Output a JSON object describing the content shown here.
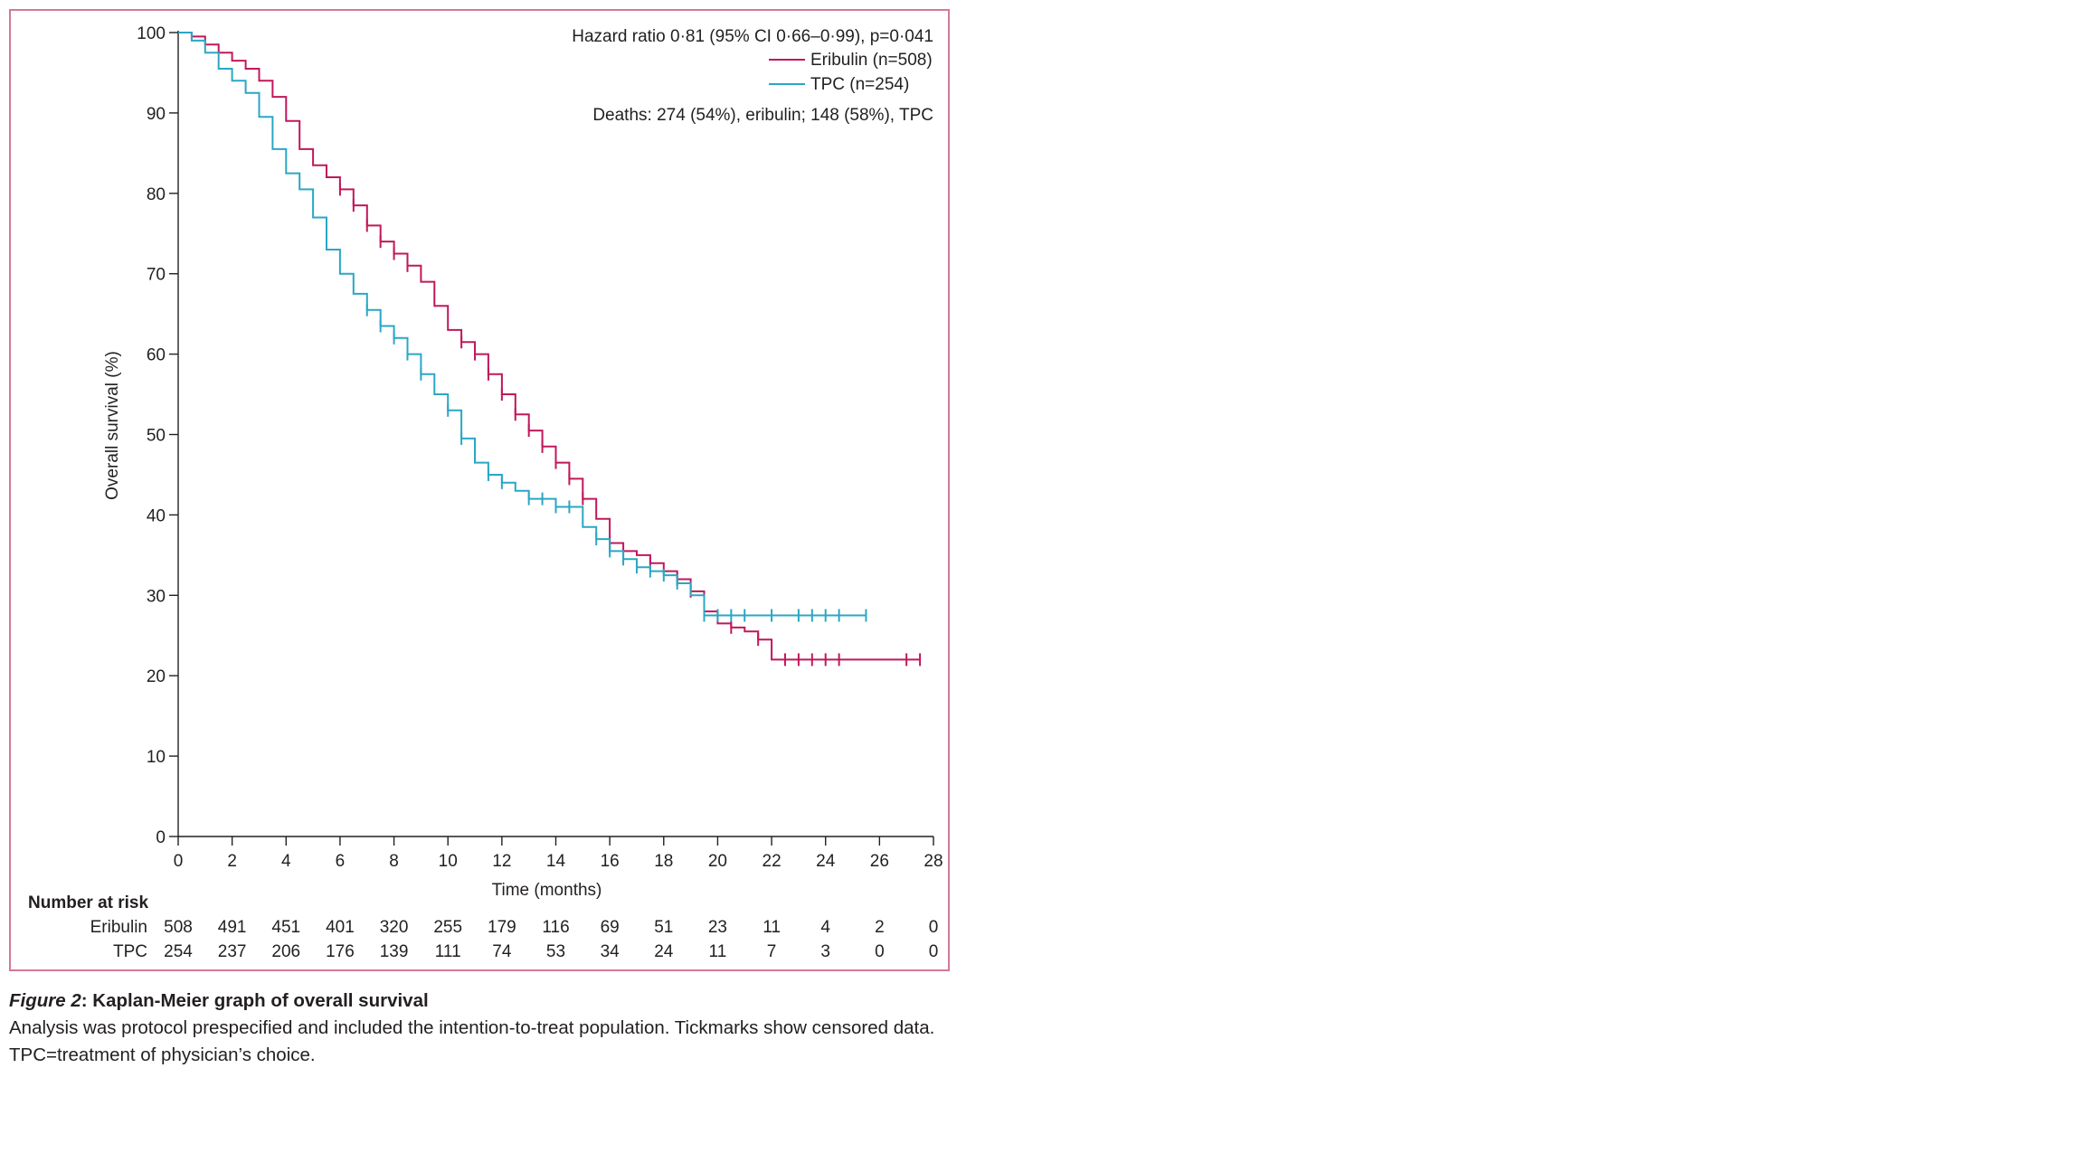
{
  "chart_data": {
    "type": "line",
    "subtype": "kaplan-meier step curve",
    "title": "",
    "xlabel": "Time (months)",
    "ylabel": "Overall survival (%)",
    "xlim": [
      0,
      28
    ],
    "ylim": [
      0,
      100
    ],
    "xticks": [
      0,
      2,
      4,
      6,
      8,
      10,
      12,
      14,
      16,
      18,
      20,
      22,
      24,
      26,
      28
    ],
    "yticks": [
      0,
      10,
      20,
      30,
      40,
      50,
      60,
      70,
      80,
      90,
      100
    ],
    "grid": false,
    "legend_position": "top-right",
    "annotations": {
      "hazard_ratio": "Hazard ratio 0·81 (95% CI 0·66–0·99), p=0·041",
      "deaths": "Deaths: 274 (54%), eribulin; 148 (58%), TPC"
    },
    "series": [
      {
        "name": "Eribulin (n=508)",
        "color": "#c0185a",
        "x": [
          0,
          0.5,
          1.0,
          1.5,
          2.0,
          2.5,
          3.0,
          3.5,
          4.0,
          4.5,
          5.0,
          5.5,
          6.0,
          6.5,
          7.0,
          7.5,
          8.0,
          8.5,
          9.0,
          9.5,
          10.0,
          10.5,
          11.0,
          11.5,
          12.0,
          12.5,
          13.0,
          13.5,
          14.0,
          14.5,
          15.0,
          15.5,
          16.0,
          16.5,
          17.0,
          17.5,
          18.0,
          18.5,
          19.0,
          19.5,
          20.0,
          20.5,
          21.0,
          21.5,
          22.0,
          23.0,
          24.0,
          25.0,
          26.0,
          27.5
        ],
        "y": [
          100,
          99.5,
          98.5,
          97.5,
          96.5,
          95.5,
          94.0,
          92.0,
          89.0,
          85.5,
          83.5,
          82.0,
          80.5,
          78.5,
          76.0,
          74.0,
          72.5,
          71.0,
          69.0,
          66.0,
          63.0,
          61.5,
          60.0,
          57.5,
          55.0,
          52.5,
          50.5,
          48.5,
          46.5,
          44.5,
          42.0,
          39.5,
          36.5,
          35.5,
          35.0,
          34.0,
          33.0,
          32.0,
          30.5,
          28.0,
          26.5,
          26.0,
          25.5,
          24.5,
          22.0,
          22.0,
          22.0,
          22.0,
          22.0,
          22.0
        ],
        "censored_x": [
          6.0,
          6.5,
          7.0,
          7.5,
          8.0,
          8.5,
          10.5,
          11.0,
          11.5,
          12.0,
          12.5,
          13.0,
          13.5,
          14.0,
          14.5,
          15.0,
          16.0,
          17.5,
          18.5,
          19.0,
          20.5,
          21.5,
          22.5,
          23.0,
          23.5,
          24.0,
          24.5,
          27.0,
          27.5
        ],
        "risk": [
          508,
          491,
          451,
          401,
          320,
          255,
          179,
          116,
          69,
          51,
          23,
          11,
          4,
          2,
          0
        ]
      },
      {
        "name": "TPC (n=254)",
        "color": "#2aa7c4",
        "x": [
          0,
          0.5,
          1.0,
          1.5,
          2.0,
          2.5,
          3.0,
          3.5,
          4.0,
          4.5,
          5.0,
          5.5,
          6.0,
          6.5,
          7.0,
          7.5,
          8.0,
          8.5,
          9.0,
          9.5,
          10.0,
          10.5,
          11.0,
          11.5,
          12.0,
          12.5,
          13.0,
          14.0,
          15.0,
          15.5,
          16.0,
          16.5,
          17.0,
          17.5,
          18.0,
          18.5,
          19.0,
          19.5,
          20.0,
          21.0,
          22.0,
          23.0,
          24.0,
          25.5
        ],
        "y": [
          100,
          99.0,
          97.5,
          95.5,
          94.0,
          92.5,
          89.5,
          85.5,
          82.5,
          80.5,
          77.0,
          73.0,
          70.0,
          67.5,
          65.5,
          63.5,
          62.0,
          60.0,
          57.5,
          55.0,
          53.0,
          49.5,
          46.5,
          45.0,
          44.0,
          43.0,
          42.0,
          41.0,
          38.5,
          37.0,
          35.5,
          34.5,
          33.5,
          33.0,
          32.5,
          31.5,
          30.0,
          27.5,
          27.5,
          27.5,
          27.5,
          27.5,
          27.5,
          27.5
        ],
        "censored_x": [
          7.0,
          7.5,
          8.0,
          8.5,
          9.0,
          10.0,
          10.5,
          11.5,
          12.0,
          13.0,
          13.5,
          14.0,
          14.5,
          15.5,
          16.0,
          16.5,
          17.0,
          17.5,
          18.0,
          18.5,
          19.5,
          20.0,
          20.5,
          21.0,
          22.0,
          23.0,
          23.5,
          24.0,
          24.5,
          25.5
        ],
        "risk": [
          254,
          237,
          206,
          176,
          139,
          111,
          74,
          53,
          34,
          24,
          11,
          7,
          3,
          0,
          0
        ]
      }
    ],
    "risk_table": {
      "heading": "Number at risk",
      "row_labels": [
        "Eribulin",
        "TPC"
      ]
    }
  },
  "caption": {
    "figure_label": "Figure 2",
    "title": ": Kaplan-Meier graph of overall survival",
    "line1": "Analysis was protocol prespecified and included the intention-to-treat population. Tickmarks show censored data.",
    "line2": "TPC=treatment of physician’s choice."
  }
}
